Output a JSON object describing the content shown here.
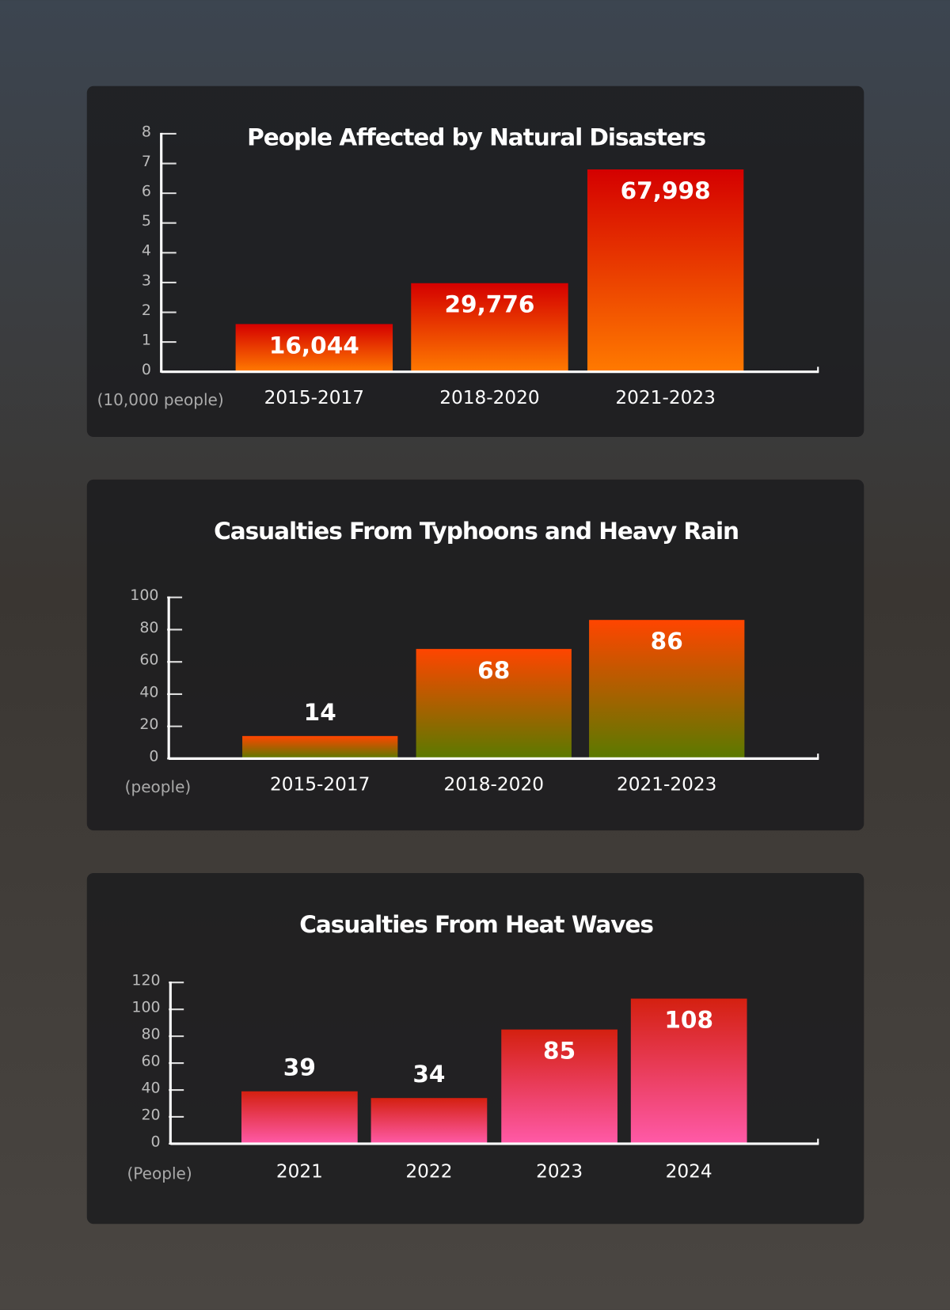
{
  "chart_data": [
    {
      "type": "bar",
      "title": "People Affected by Natural Disasters",
      "y_label": "(10,000 people)",
      "categories": [
        "2015-2017",
        "2018-2020",
        "2021-2023"
      ],
      "values": [
        1.6044,
        2.9776,
        6.7998
      ],
      "value_labels": [
        "16,044",
        "29,776",
        "67,998"
      ],
      "ylim": [
        0,
        8
      ],
      "yticks": [
        0,
        1,
        2,
        3,
        4,
        5,
        6,
        7,
        8
      ],
      "gradient": [
        "#d40000",
        "#ff7a00"
      ]
    },
    {
      "type": "bar",
      "title": "Casualties From Typhoons and Heavy Rain",
      "y_label": "(people)",
      "categories": [
        "2015-2017",
        "2018-2020",
        "2021-2023"
      ],
      "values": [
        14,
        68,
        86
      ],
      "ylim": [
        0,
        100
      ],
      "yticks": [
        0,
        20,
        40,
        60,
        80,
        100
      ],
      "gradient": [
        "#ff4500",
        "#5a7a00"
      ]
    },
    {
      "type": "bar",
      "title": "Casualties From Heat Waves",
      "y_label": "(People)",
      "categories": [
        "2021",
        "2022",
        "2023",
        "2024"
      ],
      "values": [
        39,
        34,
        85,
        108
      ],
      "ylim": [
        0,
        120
      ],
      "yticks": [
        0,
        20,
        40,
        60,
        80,
        100,
        120
      ],
      "gradient": [
        "#d42010",
        "#ff5aa8"
      ]
    }
  ]
}
